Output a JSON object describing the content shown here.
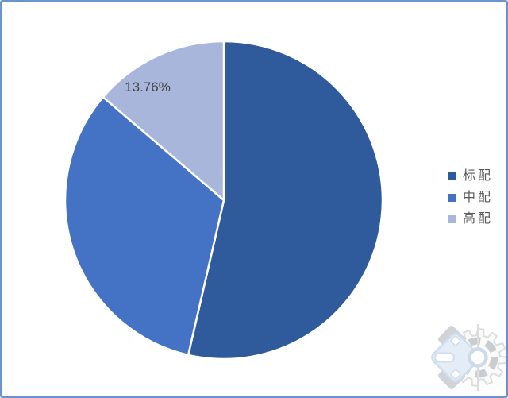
{
  "page": {
    "background_color": "#ffffff",
    "border_color": "#6B94CF"
  },
  "chart_data": {
    "type": "pie",
    "title": "",
    "legend_position": "right",
    "start_angle_deg": 0,
    "grid": false,
    "separator_color": "#FFFFFF",
    "data_label_color": "#404040",
    "legend_text_color": "#595959",
    "slices": [
      {
        "name": "标配",
        "value": 53.6,
        "color": "#2F5A9C",
        "data_label": ""
      },
      {
        "name": "中配",
        "value": 32.64,
        "color": "#4472C4",
        "data_label": ""
      },
      {
        "name": "高配",
        "value": 13.76,
        "color": "#A9B6DC",
        "data_label": "13.76%",
        "label_xy": [
          184,
          113
        ]
      }
    ]
  },
  "watermark": {
    "icon": "gear-logo-icon"
  }
}
